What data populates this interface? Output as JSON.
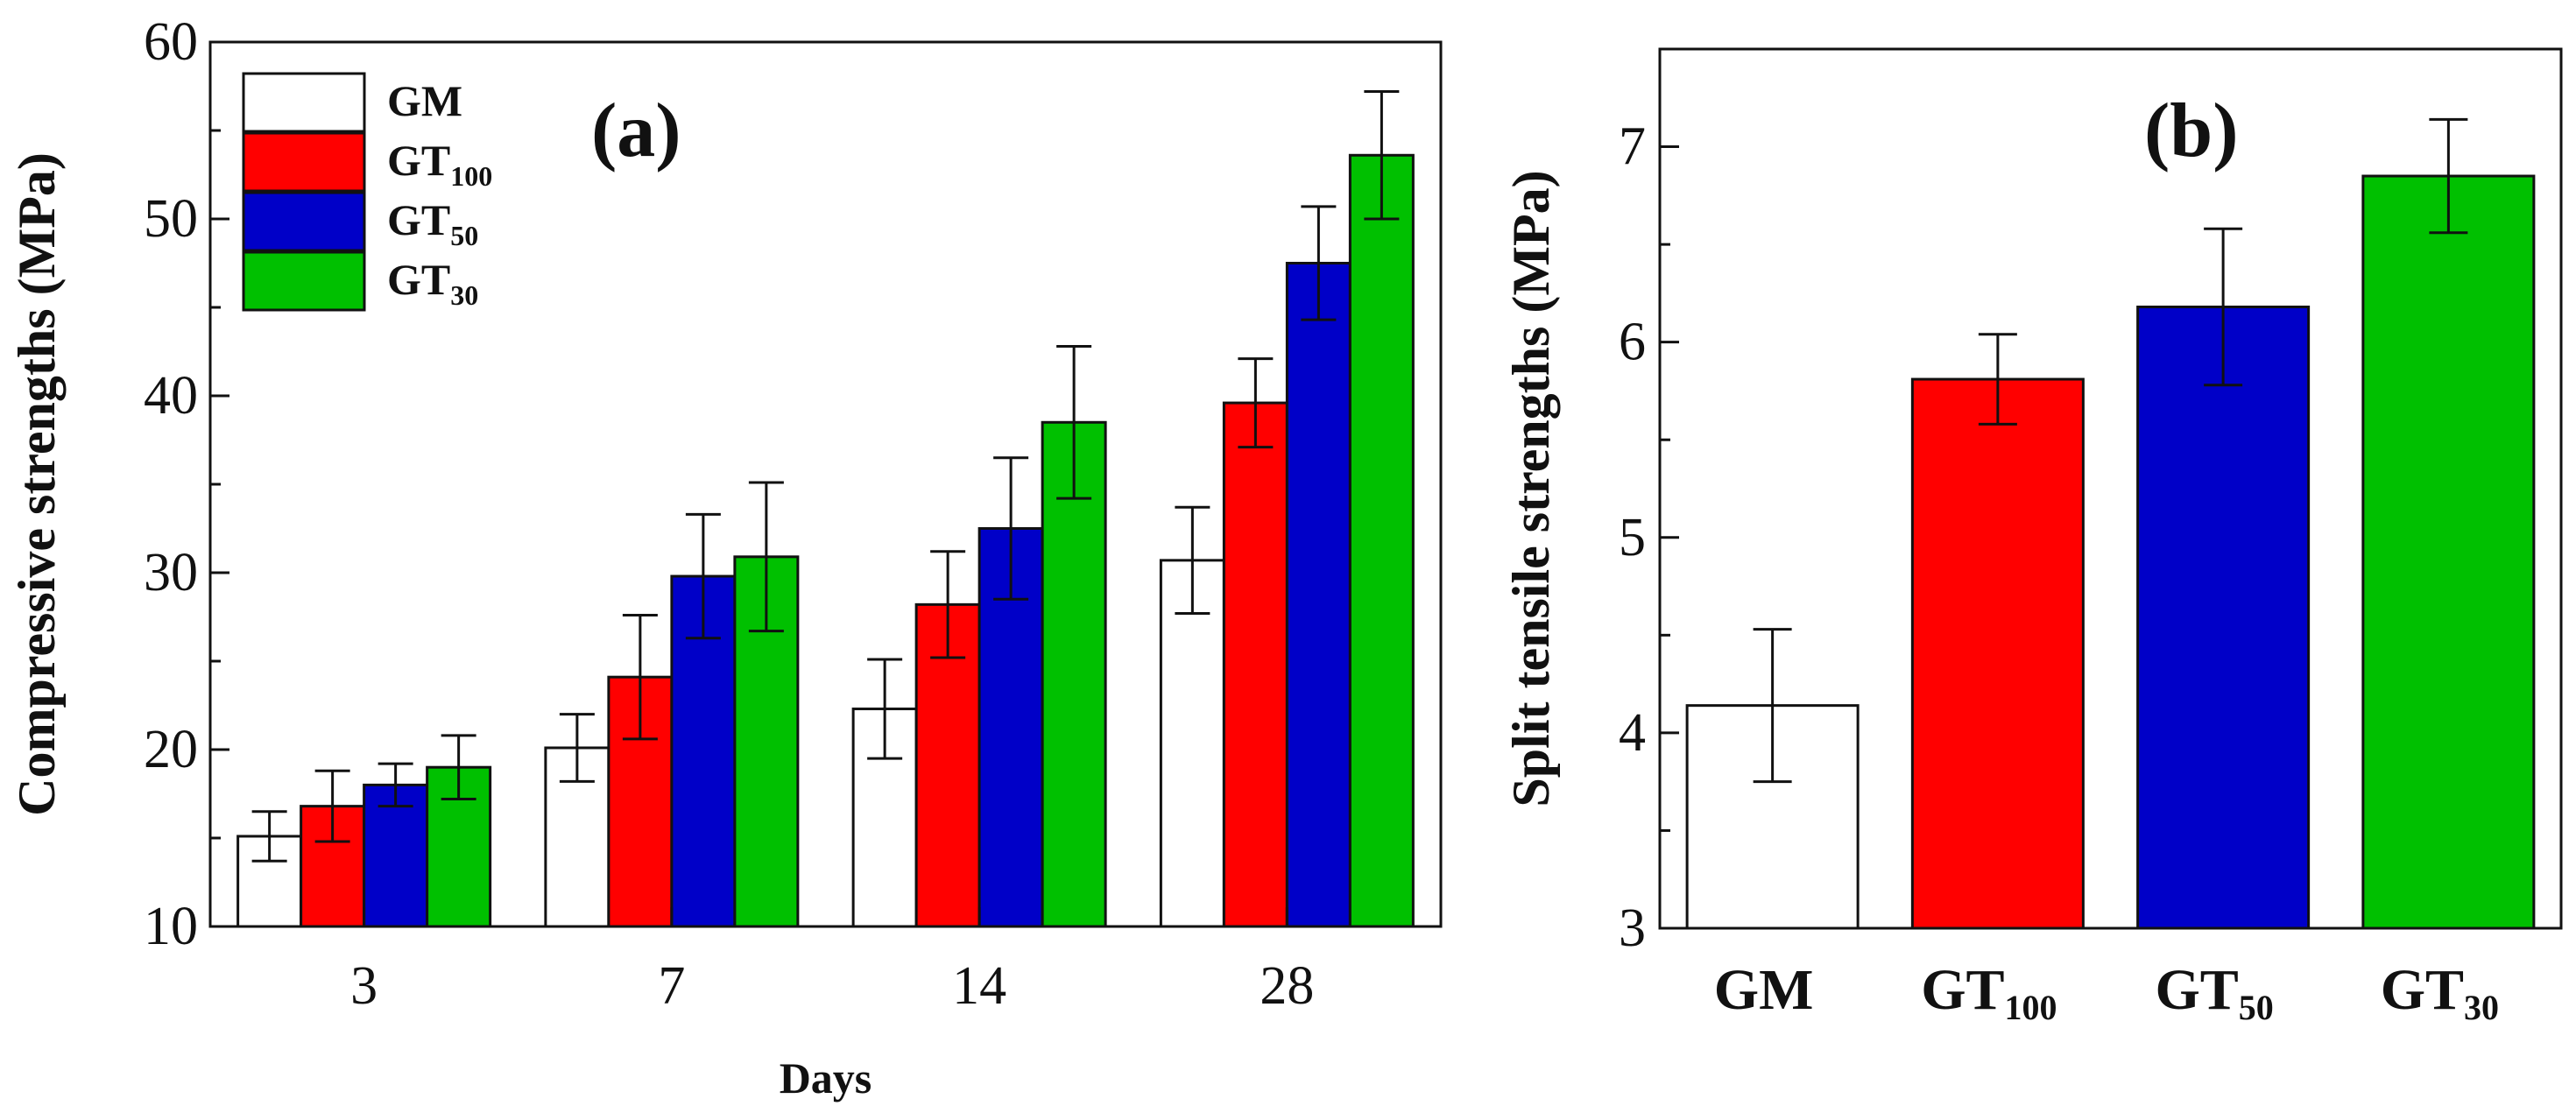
{
  "chart_data": [
    {
      "type": "bar",
      "panel_label": "(a)",
      "categories": [
        "3",
        "7",
        "14",
        "28"
      ],
      "xlabel": "Days",
      "ylabel": "Compressive strengths (MPa)",
      "ylim": [
        10,
        60
      ],
      "yticks": [
        "10",
        "20",
        "30",
        "40",
        "50",
        "60"
      ],
      "legend_position": "top-left",
      "series": [
        {
          "name": "GM",
          "base": "GM",
          "sub": "",
          "color": "#ffffff",
          "values": [
            15.1,
            20.1,
            22.3,
            30.7
          ],
          "errors": [
            1.4,
            1.9,
            2.8,
            3.0
          ]
        },
        {
          "name": "GT100",
          "base": "GT",
          "sub": "100",
          "color": "#ff0000",
          "values": [
            16.8,
            24.1,
            28.2,
            39.6
          ],
          "errors": [
            2.0,
            3.5,
            3.0,
            2.5
          ]
        },
        {
          "name": "GT50",
          "base": "GT",
          "sub": "50",
          "color": "#0000c8",
          "values": [
            18.0,
            29.8,
            32.5,
            47.5
          ],
          "errors": [
            1.2,
            3.5,
            4.0,
            3.2
          ]
        },
        {
          "name": "GT30",
          "base": "GT",
          "sub": "30",
          "color": "#00c000",
          "values": [
            19.0,
            30.9,
            38.5,
            53.6
          ],
          "errors": [
            1.8,
            4.2,
            4.3,
            3.6
          ]
        }
      ]
    },
    {
      "type": "bar",
      "panel_label": "(b)",
      "categories": [
        {
          "base": "GM",
          "sub": ""
        },
        {
          "base": "GT",
          "sub": "100"
        },
        {
          "base": "GT",
          "sub": "50"
        },
        {
          "base": "GT",
          "sub": "30"
        }
      ],
      "ylabel": "Split tensile strengths (MPa)",
      "ylim": [
        3,
        7.5
      ],
      "yticks": [
        "3",
        "4",
        "5",
        "6",
        "7"
      ],
      "colors": [
        "#ffffff",
        "#ff0000",
        "#0000c8",
        "#00c000"
      ],
      "values": [
        4.14,
        5.81,
        6.18,
        6.85
      ],
      "errors": [
        0.39,
        0.23,
        0.4,
        0.29
      ]
    }
  ]
}
